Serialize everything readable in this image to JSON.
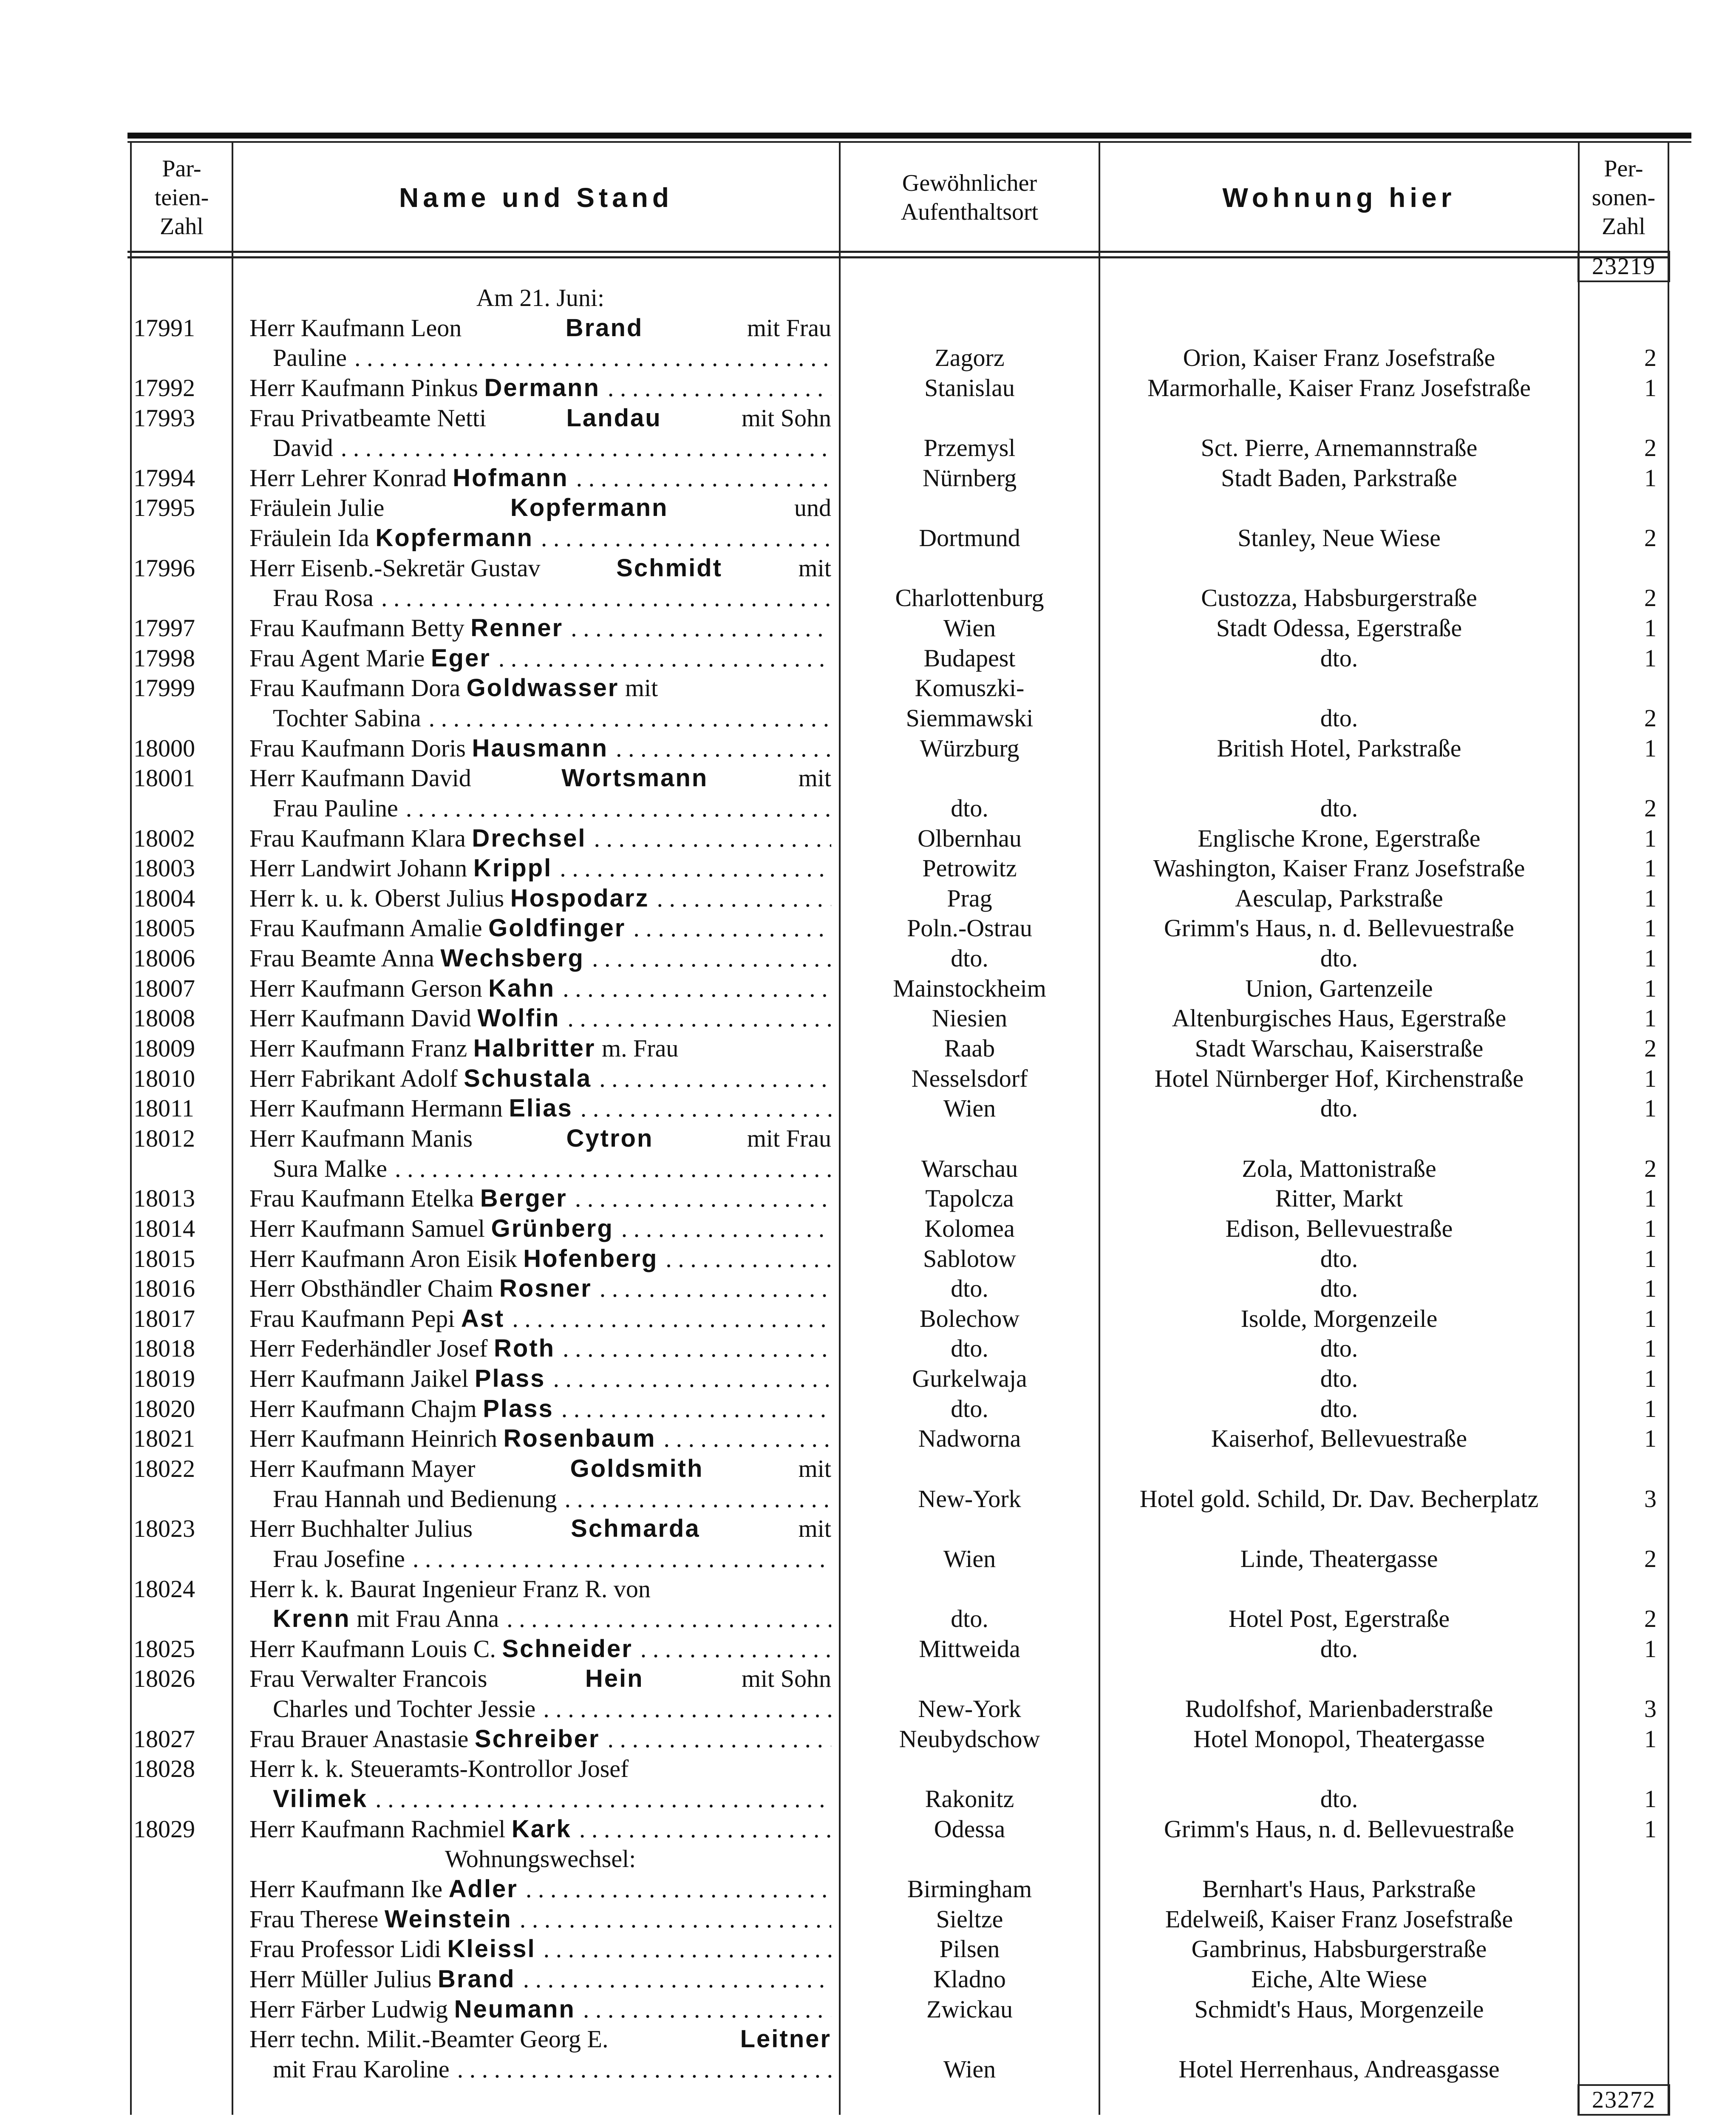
{
  "header": {
    "col_number": [
      "Par-",
      "teien-",
      "Zahl"
    ],
    "col_name": "Name und Stand",
    "col_origin": [
      "Gewöhnlicher",
      "Aufenthaltsort"
    ],
    "col_residence": "Wohnung hier",
    "col_persons": [
      "Per-",
      "sonen-",
      "Zahl"
    ]
  },
  "carry_over_total": "23219",
  "closing_total": "23272",
  "rows": [
    {
      "c": "Am 21. Juni:"
    },
    {
      "n": "17991",
      "t": "Herr Kaufmann Leon ",
      "b": "Brand",
      "a": " mit Frau"
    },
    {
      "t": "Pauline",
      "d": true,
      "i": true,
      "o": "Zagorz",
      "r": "Orion, Kaiser Franz Josefstraße",
      "p": "2"
    },
    {
      "n": "17992",
      "t": "Herr Kaufmann Pinkus ",
      "b": "Dermann",
      "d": true,
      "o": "Stanislau",
      "r": "Marmorhalle, Kaiser Franz Josefstraße",
      "p": "1"
    },
    {
      "n": "17993",
      "t": "Frau Privatbeamte Netti ",
      "b": "Landau",
      "a": " mit Sohn"
    },
    {
      "t": "David",
      "d": true,
      "i": true,
      "o": "Przemysl",
      "r": "Sct. Pierre, Arnemannstraße",
      "p": "2"
    },
    {
      "n": "17994",
      "t": "Herr Lehrer Konrad ",
      "b": "Hofmann",
      "d": true,
      "o": "Nürnberg",
      "r": "Stadt Baden, Parkstraße",
      "p": "1"
    },
    {
      "n": "17995",
      "t": "Fräulein Julie ",
      "b": "Kopfermann",
      "a": " und"
    },
    {
      "t": "Fräulein Ida ",
      "b": "Kopfermann",
      "d": true,
      "o": "Dortmund",
      "r": "Stanley, Neue Wiese",
      "p": "2"
    },
    {
      "n": "17996",
      "t": "Herr Eisenb.-Sekretär Gustav ",
      "b": "Schmidt",
      "a": " mit"
    },
    {
      "t": "Frau Rosa",
      "d": true,
      "i": true,
      "o": "Charlottenburg",
      "r": "Custozza, Habsburgerstraße",
      "p": "2"
    },
    {
      "n": "17997",
      "t": "Frau Kaufmann Betty ",
      "b": "Renner",
      "d": true,
      "o": "Wien",
      "r": "Stadt Odessa, Egerstraße",
      "p": "1"
    },
    {
      "n": "17998",
      "t": "Frau Agent Marie ",
      "b": "Eger",
      "d": true,
      "o": "Budapest",
      "r": "dto.",
      "p": "1"
    },
    {
      "n": "17999",
      "t": "Frau Kaufmann Dora ",
      "b": "Goldwasser",
      "a": " mit",
      "o": "Komuszki-"
    },
    {
      "t": "Tochter Sabina",
      "d": true,
      "i": true,
      "o": "Siemmawski",
      "r": "dto.",
      "p": "2"
    },
    {
      "n": "18000",
      "t": "Frau Kaufmann Doris ",
      "b": "Hausmann",
      "d": true,
      "o": "Würzburg",
      "r": "British Hotel, Parkstraße",
      "p": "1"
    },
    {
      "n": "18001",
      "t": "Herr Kaufmann David ",
      "b": "Wortsmann",
      "a": " mit"
    },
    {
      "t": "Frau Pauline",
      "d": true,
      "i": true,
      "o": "dto.",
      "r": "dto.",
      "p": "2"
    },
    {
      "n": "18002",
      "t": "Frau Kaufmann Klara ",
      "b": "Drechsel",
      "d": true,
      "o": "Olbernhau",
      "r": "Englische Krone, Egerstraße",
      "p": "1"
    },
    {
      "n": "18003",
      "t": "Herr Landwirt Johann ",
      "b": "Krippl",
      "d": true,
      "o": "Petrowitz",
      "r": "Washington, Kaiser Franz Josefstraße",
      "p": "1"
    },
    {
      "n": "18004",
      "t": "Herr k. u. k. Oberst Julius ",
      "b": "Hospodarz",
      "d": true,
      "o": "Prag",
      "r": "Aesculap, Parkstraße",
      "p": "1"
    },
    {
      "n": "18005",
      "t": "Frau Kaufmann Amalie ",
      "b": "Goldfinger",
      "d": true,
      "o": "Poln.-Ostrau",
      "r": "Grimm's Haus, n. d. Bellevuestraße",
      "p": "1"
    },
    {
      "n": "18006",
      "t": "Frau Beamte Anna ",
      "b": "Wechsberg",
      "d": true,
      "o": "dto.",
      "r": "dto.",
      "p": "1"
    },
    {
      "n": "18007",
      "t": "Herr Kaufmann Gerson ",
      "b": "Kahn",
      "d": true,
      "o": "Mainstockheim",
      "r": "Union, Gartenzeile",
      "p": "1"
    },
    {
      "n": "18008",
      "t": "Herr Kaufmann David ",
      "b": "Wolfin",
      "d": true,
      "o": "Niesien",
      "r": "Altenburgisches Haus, Egerstraße",
      "p": "1"
    },
    {
      "n": "18009",
      "t": "Herr Kaufmann Franz ",
      "b": "Halbritter",
      "a": " m. Frau",
      "o": "Raab",
      "r": "Stadt Warschau, Kaiserstraße",
      "p": "2"
    },
    {
      "n": "18010",
      "t": "Herr Fabrikant Adolf ",
      "b": "Schustala",
      "d": true,
      "o": "Nesselsdorf",
      "r": "Hotel Nürnberger Hof, Kirchenstraße",
      "p": "1"
    },
    {
      "n": "18011",
      "t": "Herr Kaufmann Hermann ",
      "b": "Elias",
      "d": true,
      "o": "Wien",
      "r": "dto.",
      "p": "1"
    },
    {
      "n": "18012",
      "t": "Herr Kaufmann Manis ",
      "b": "Cytron",
      "a": " mit Frau"
    },
    {
      "t": "Sura Malke",
      "d": true,
      "i": true,
      "o": "Warschau",
      "r": "Zola, Mattonistraße",
      "p": "2"
    },
    {
      "n": "18013",
      "t": "Frau Kaufmann Etelka ",
      "b": "Berger",
      "d": true,
      "o": "Tapolcza",
      "r": "Ritter, Markt",
      "p": "1"
    },
    {
      "n": "18014",
      "t": "Herr Kaufmann Samuel ",
      "b": "Grünberg",
      "d": true,
      "o": "Kolomea",
      "r": "Edison, Bellevuestraße",
      "p": "1"
    },
    {
      "n": "18015",
      "t": "Herr Kaufmann Aron Eisik ",
      "b": "Hofenberg",
      "d": true,
      "o": "Sablotow",
      "r": "dto.",
      "p": "1"
    },
    {
      "n": "18016",
      "t": "Herr Obsthändler Chaim ",
      "b": "Rosner",
      "d": true,
      "o": "dto.",
      "r": "dto.",
      "p": "1"
    },
    {
      "n": "18017",
      "t": "Frau Kaufmann Pepi ",
      "b": "Ast",
      "d": true,
      "o": "Bolechow",
      "r": "Isolde, Morgenzeile",
      "p": "1"
    },
    {
      "n": "18018",
      "t": "Herr Federhändler Josef ",
      "b": "Roth",
      "d": true,
      "o": "dto.",
      "r": "dto.",
      "p": "1"
    },
    {
      "n": "18019",
      "t": "Herr Kaufmann Jaikel ",
      "b": "Plass",
      "d": true,
      "o": "Gurkelwaja",
      "r": "dto.",
      "p": "1"
    },
    {
      "n": "18020",
      "t": "Herr Kaufmann Chajm ",
      "b": "Plass",
      "d": true,
      "o": "dto.",
      "r": "dto.",
      "p": "1"
    },
    {
      "n": "18021",
      "t": "Herr Kaufmann Heinrich ",
      "b": "Rosenbaum",
      "d": true,
      "o": "Nadworna",
      "r": "Kaiserhof, Bellevuestraße",
      "p": "1"
    },
    {
      "n": "18022",
      "t": "Herr Kaufmann Mayer ",
      "b": "Goldsmith",
      "a": " mit"
    },
    {
      "t": "Frau Hannah und Bedienung",
      "d": true,
      "i": true,
      "o": "New-York",
      "r": "Hotel gold. Schild, Dr. Dav. Becherplatz",
      "p": "3"
    },
    {
      "n": "18023",
      "t": "Herr Buchhalter Julius ",
      "b": "Schmarda",
      "a": " mit"
    },
    {
      "t": "Frau Josefine",
      "d": true,
      "i": true,
      "o": "Wien",
      "r": "Linde, Theatergasse",
      "p": "2"
    },
    {
      "n": "18024",
      "t": "Herr k. k. Baurat Ingenieur Franz R. von"
    },
    {
      "b": "Krenn",
      "a": " mit Frau Anna",
      "d": true,
      "i": true,
      "o": "dto.",
      "r": "Hotel Post, Egerstraße",
      "p": "2"
    },
    {
      "n": "18025",
      "t": "Herr Kaufmann Louis C. ",
      "b": "Schneider",
      "d": true,
      "o": "Mittweida",
      "r": "dto.",
      "p": "1"
    },
    {
      "n": "18026",
      "t": "Frau Verwalter Francois ",
      "b": "Hein",
      "a": " mit Sohn"
    },
    {
      "t": "Charles und Tochter Jessie",
      "d": true,
      "i": true,
      "o": "New-York",
      "r": "Rudolfshof, Marienbaderstraße",
      "p": "3"
    },
    {
      "n": "18027",
      "t": "Frau Brauer Anastasie ",
      "b": "Schreiber",
      "d": true,
      "o": "Neubydschow",
      "r": "Hotel Monopol, Theatergasse",
      "p": "1"
    },
    {
      "n": "18028",
      "t": "Herr k. k. Steueramts-Kontrollor Josef"
    },
    {
      "b": "Vilimek",
      "d": true,
      "i": true,
      "o": "Rakonitz",
      "r": "dto.",
      "p": "1"
    },
    {
      "n": "18029",
      "t": "Herr Kaufmann Rachmiel ",
      "b": "Kark",
      "d": true,
      "o": "Odessa",
      "r": "Grimm's Haus, n. d. Bellevuestraße",
      "p": "1"
    },
    {
      "c": "Wohnungswechsel:"
    },
    {
      "t": "Herr Kaufmann Ike ",
      "b": "Adler",
      "d": true,
      "o": "Birmingham",
      "r": "Bernhart's Haus, Parkstraße"
    },
    {
      "t": "Frau Therese ",
      "b": "Weinstein",
      "d": true,
      "o": "Sieltze",
      "r": "Edelweiß, Kaiser Franz Josefstraße"
    },
    {
      "t": "Frau Professor Lidi ",
      "b": "Kleissl",
      "d": true,
      "o": "Pilsen",
      "r": "Gambrinus, Habsburgerstraße"
    },
    {
      "t": "Herr Müller Julius ",
      "b": "Brand",
      "d": true,
      "o": "Kladno",
      "r": "Eiche, Alte Wiese"
    },
    {
      "t": "Herr Färber Ludwig ",
      "b": "Neumann",
      "d": true,
      "o": "Zwickau",
      "r": "Schmidt's Haus, Morgenzeile"
    },
    {
      "t": "Herr techn. Milit.-Beamter Georg E. ",
      "b": "Leitner"
    },
    {
      "t": "mit Frau Karoline",
      "d": true,
      "i": true,
      "o": "Wien",
      "r": "Hotel Herrenhaus, Andreasgasse"
    }
  ]
}
